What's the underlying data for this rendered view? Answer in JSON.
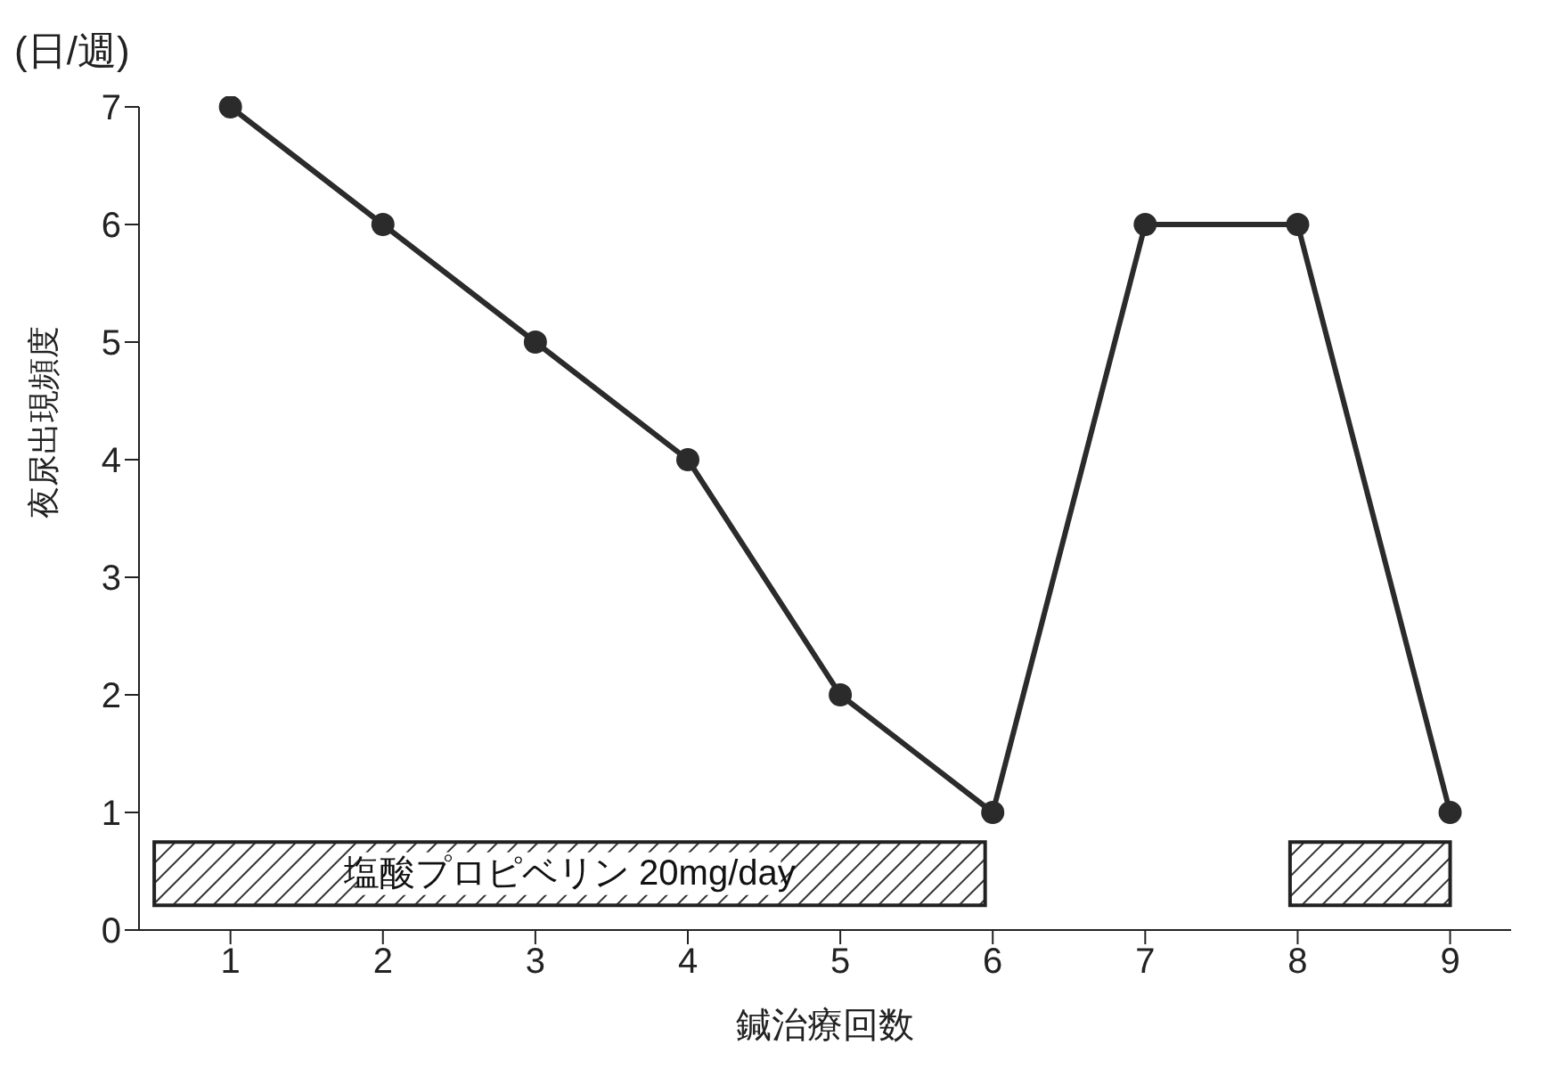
{
  "chart_data": {
    "type": "line",
    "xlabel": "鍼治療回数",
    "ylabel": "夜尿出現頻度",
    "annotations": [
      "(日/週)"
    ],
    "x": [
      1,
      2,
      3,
      4,
      5,
      6,
      7,
      8,
      9
    ],
    "series": [
      {
        "color": "#2b2b2b",
        "values": [
          7,
          6,
          5,
          4,
          2,
          1,
          6,
          6,
          1
        ]
      }
    ],
    "xlim": [
      0.4,
      9.4
    ],
    "xticks": [
      1,
      2,
      3,
      4,
      5,
      6,
      7,
      8,
      9
    ],
    "ylim": [
      0,
      7
    ],
    "yticks": [
      0,
      1,
      2,
      3,
      4,
      5,
      6,
      7
    ],
    "bands": [
      {
        "axis": "x",
        "from": 0.5,
        "to": 5.95,
        "label": "塩酸プロピベリン 20mg/day"
      },
      {
        "axis": "x",
        "from": 7.95,
        "to": 9.0
      }
    ],
    "grid": false,
    "legend": false,
    "marker": "circle",
    "line_style": "solid"
  }
}
